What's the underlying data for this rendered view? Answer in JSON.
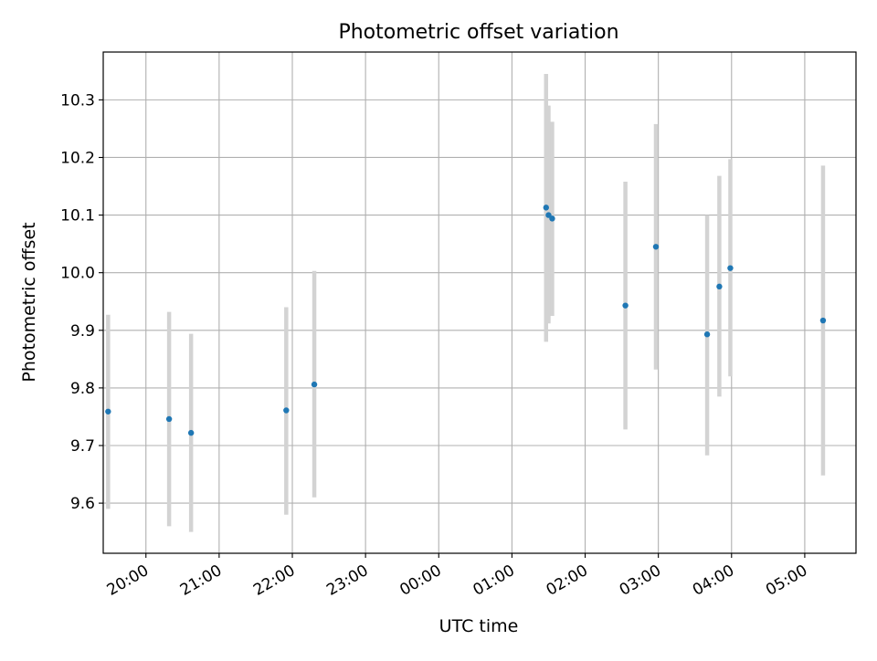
{
  "chart_data": {
    "type": "scatter",
    "title": "Photometric offset variation",
    "xlabel": "UTC time",
    "ylabel": "Photometric offset",
    "x_unit": "time of day (UTC), first point on evening before midnight",
    "xlim": [
      "19:25",
      "05:42"
    ],
    "ylim": [
      9.513,
      10.383
    ],
    "x_tick_labels": [
      "20:00",
      "21:00",
      "22:00",
      "23:00",
      "00:00",
      "01:00",
      "02:00",
      "03:00",
      "04:00",
      "05:00"
    ],
    "y_tick_labels": [
      "9.6",
      "9.7",
      "9.8",
      "9.9",
      "10.0",
      "10.1",
      "10.2",
      "10.3"
    ],
    "y_ticks": [
      9.6,
      9.7,
      9.8,
      9.9,
      10.0,
      10.1,
      10.2,
      10.3
    ],
    "grid": true,
    "marker_color": "#1f77b4",
    "errorbar_color": "#d3d3d3",
    "points": [
      {
        "x": "19:29",
        "y": 9.759,
        "y_low": 9.59,
        "y_high": 9.927
      },
      {
        "x": "20:19",
        "y": 9.746,
        "y_low": 9.56,
        "y_high": 9.932
      },
      {
        "x": "20:37",
        "y": 9.722,
        "y_low": 9.55,
        "y_high": 9.894
      },
      {
        "x": "21:55",
        "y": 9.761,
        "y_low": 9.58,
        "y_high": 9.94
      },
      {
        "x": "22:18",
        "y": 9.806,
        "y_low": 9.61,
        "y_high": 10.003
      },
      {
        "x": "01:28",
        "y": 10.113,
        "y_low": 9.88,
        "y_high": 10.345
      },
      {
        "x": "01:30",
        "y": 10.1,
        "y_low": 9.912,
        "y_high": 10.29
      },
      {
        "x": "01:33",
        "y": 10.094,
        "y_low": 9.925,
        "y_high": 10.262
      },
      {
        "x": "02:33",
        "y": 9.943,
        "y_low": 9.728,
        "y_high": 10.158
      },
      {
        "x": "02:58",
        "y": 10.045,
        "y_low": 9.832,
        "y_high": 10.258
      },
      {
        "x": "03:40",
        "y": 9.893,
        "y_low": 9.683,
        "y_high": 10.1
      },
      {
        "x": "03:50",
        "y": 9.976,
        "y_low": 9.785,
        "y_high": 10.168
      },
      {
        "x": "03:59",
        "y": 10.008,
        "y_low": 9.82,
        "y_high": 10.197
      },
      {
        "x": "05:15",
        "y": 9.917,
        "y_low": 9.648,
        "y_high": 10.186
      }
    ]
  }
}
